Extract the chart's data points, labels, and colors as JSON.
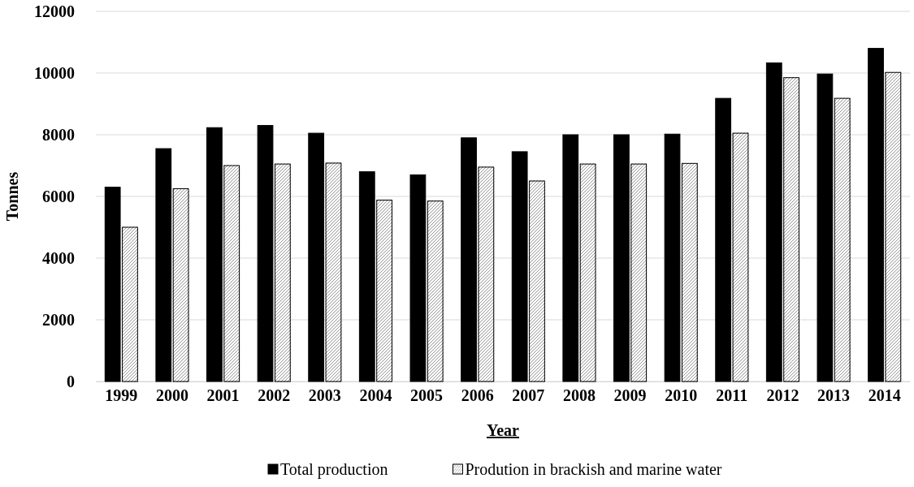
{
  "chart_data": {
    "type": "bar",
    "xlabel": "Year",
    "ylabel": "Tonnes",
    "categories": [
      "1999",
      "2000",
      "2001",
      "2002",
      "2003",
      "2004",
      "2005",
      "2006",
      "2007",
      "2008",
      "2009",
      "2010",
      "2011",
      "2012",
      "2013",
      "2014"
    ],
    "series": [
      {
        "name": "Total production",
        "color": "#000000",
        "values": [
          6300,
          7550,
          8230,
          8300,
          8050,
          6800,
          6700,
          7900,
          7450,
          8000,
          8000,
          8020,
          9180,
          10330,
          9970,
          10800
        ]
      },
      {
        "name": "Prodution in brackish and marine water",
        "color": "#ffffff",
        "values": [
          5000,
          6250,
          7000,
          7050,
          7080,
          5880,
          5850,
          6950,
          6500,
          7050,
          7050,
          7070,
          8050,
          9850,
          9180,
          10020
        ]
      }
    ],
    "ylim": [
      0,
      12000
    ],
    "yticks": [
      0,
      2000,
      4000,
      6000,
      8000,
      10000,
      12000
    ],
    "grid": "y",
    "legend": "bottom"
  }
}
